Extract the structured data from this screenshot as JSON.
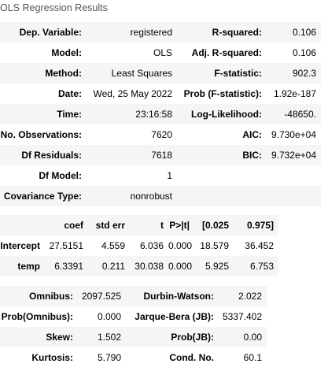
{
  "caption": "OLS Regression Results",
  "summary": [
    {
      "l1": "Dep. Variable:",
      "v1": "registered",
      "l2": "R-squared:",
      "v2": "0.106"
    },
    {
      "l1": "Model:",
      "v1": "OLS",
      "l2": "Adj. R-squared:",
      "v2": "0.106"
    },
    {
      "l1": "Method:",
      "v1": "Least Squares",
      "l2": "F-statistic:",
      "v2": "902.3"
    },
    {
      "l1": "Date:",
      "v1": "Wed, 25 May 2022",
      "l2": "Prob (F-statistic):",
      "v2": "1.92e-187"
    },
    {
      "l1": "Time:",
      "v1": "23:16:58",
      "l2": "Log-Likelihood:",
      "v2": "-48650."
    },
    {
      "l1": "No. Observations:",
      "v1": "7620",
      "l2": "AIC:",
      "v2": "9.730e+04"
    },
    {
      "l1": "Df Residuals:",
      "v1": "7618",
      "l2": "BIC:",
      "v2": "9.732e+04"
    },
    {
      "l1": "Df Model:",
      "v1": "1",
      "l2": "",
      "v2": ""
    },
    {
      "l1": "Covariance Type:",
      "v1": "nonrobust",
      "l2": "",
      "v2": ""
    }
  ],
  "coef_table": {
    "headers": [
      "",
      "coef",
      "std err",
      "t",
      "P>|t|",
      "[0.025",
      "0.975]"
    ],
    "rows": [
      [
        "Intercept",
        "27.5151",
        "4.559",
        "6.036",
        "0.000",
        "18.579",
        "36.452"
      ],
      [
        "temp",
        "6.3391",
        "0.211",
        "30.038",
        "0.000",
        "5.925",
        "6.753"
      ]
    ]
  },
  "diagnostics": [
    {
      "l1": "Omnibus:",
      "v1": "2097.525",
      "l2": "Durbin-Watson:",
      "v2": "2.022"
    },
    {
      "l1": "Prob(Omnibus):",
      "v1": "0.000",
      "l2": "Jarque-Bera (JB):",
      "v2": "5337.402"
    },
    {
      "l1": "Skew:",
      "v1": "1.502",
      "l2": "Prob(JB):",
      "v2": "0.00"
    },
    {
      "l1": "Kurtosis:",
      "v1": "5.790",
      "l2": "Cond. No.",
      "v2": "60.1"
    }
  ]
}
